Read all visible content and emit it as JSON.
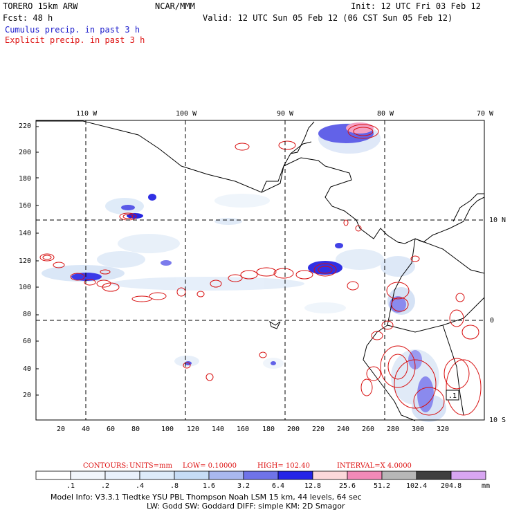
{
  "header": {
    "model": "TORERO  15km ARW",
    "org": "NCAR/MMM",
    "init": "Init: 12 UTC Fri 03 Feb 12",
    "fcst": "Fcst:   48 h",
    "valid": "Valid: 12 UTC Sun 05 Feb 12 (06 CST Sun 05 Feb 12)",
    "cumulus": "Cumulus precip. in past 3 h",
    "explicit": "Explicit precip. in past 3 h"
  },
  "axes": {
    "lon_labels": [
      "110 W",
      "100 W",
      "90 W",
      "80 W",
      "70 W"
    ],
    "lat_labels": [
      "10 N",
      "0",
      "10 S"
    ],
    "x_ticks": [
      "20",
      "40",
      "60",
      "80",
      "100",
      "120",
      "140",
      "160",
      "180",
      "200",
      "220",
      "240",
      "260",
      "280",
      "300",
      "320"
    ],
    "y_ticks": [
      "220",
      "200",
      "180",
      "160",
      "140",
      "120",
      "100",
      "80",
      "60",
      "40",
      "20"
    ],
    "box_label": ".1"
  },
  "contour_info": {
    "contours": "CONTOURS:",
    "units": "UNITS=mm",
    "low": "LOW= 0.10000",
    "high": "HIGH=  102.40",
    "interval": "INTERVAL=X  4.0000"
  },
  "colorbar": {
    "labels": [
      ".1",
      ".2",
      ".4",
      ".8",
      "1.6",
      "3.2",
      "6.4",
      "12.8",
      "25.6",
      "51.2",
      "102.4",
      "204.8"
    ],
    "unit": "mm",
    "colors": [
      "#ffffff",
      "#f2f6fb",
      "#e9f1fb",
      "#ddebf9",
      "#c6dcf5",
      "#a9b8ef",
      "#6f73e8",
      "#2424e6",
      "#fcd8da",
      "#f28ab8",
      "#b7b7b7",
      "#3f3f3f",
      "#d8a6f2"
    ]
  },
  "model_info": {
    "line1": "Model Info: V3.3.1    Tiedtke YSU PBL  Thompson    Noah LSM  15 km,   44 levels,   64 sec",
    "line2": "LW: Godd SW: Goddard DIFF: simple KM: 2D Smagor"
  }
}
